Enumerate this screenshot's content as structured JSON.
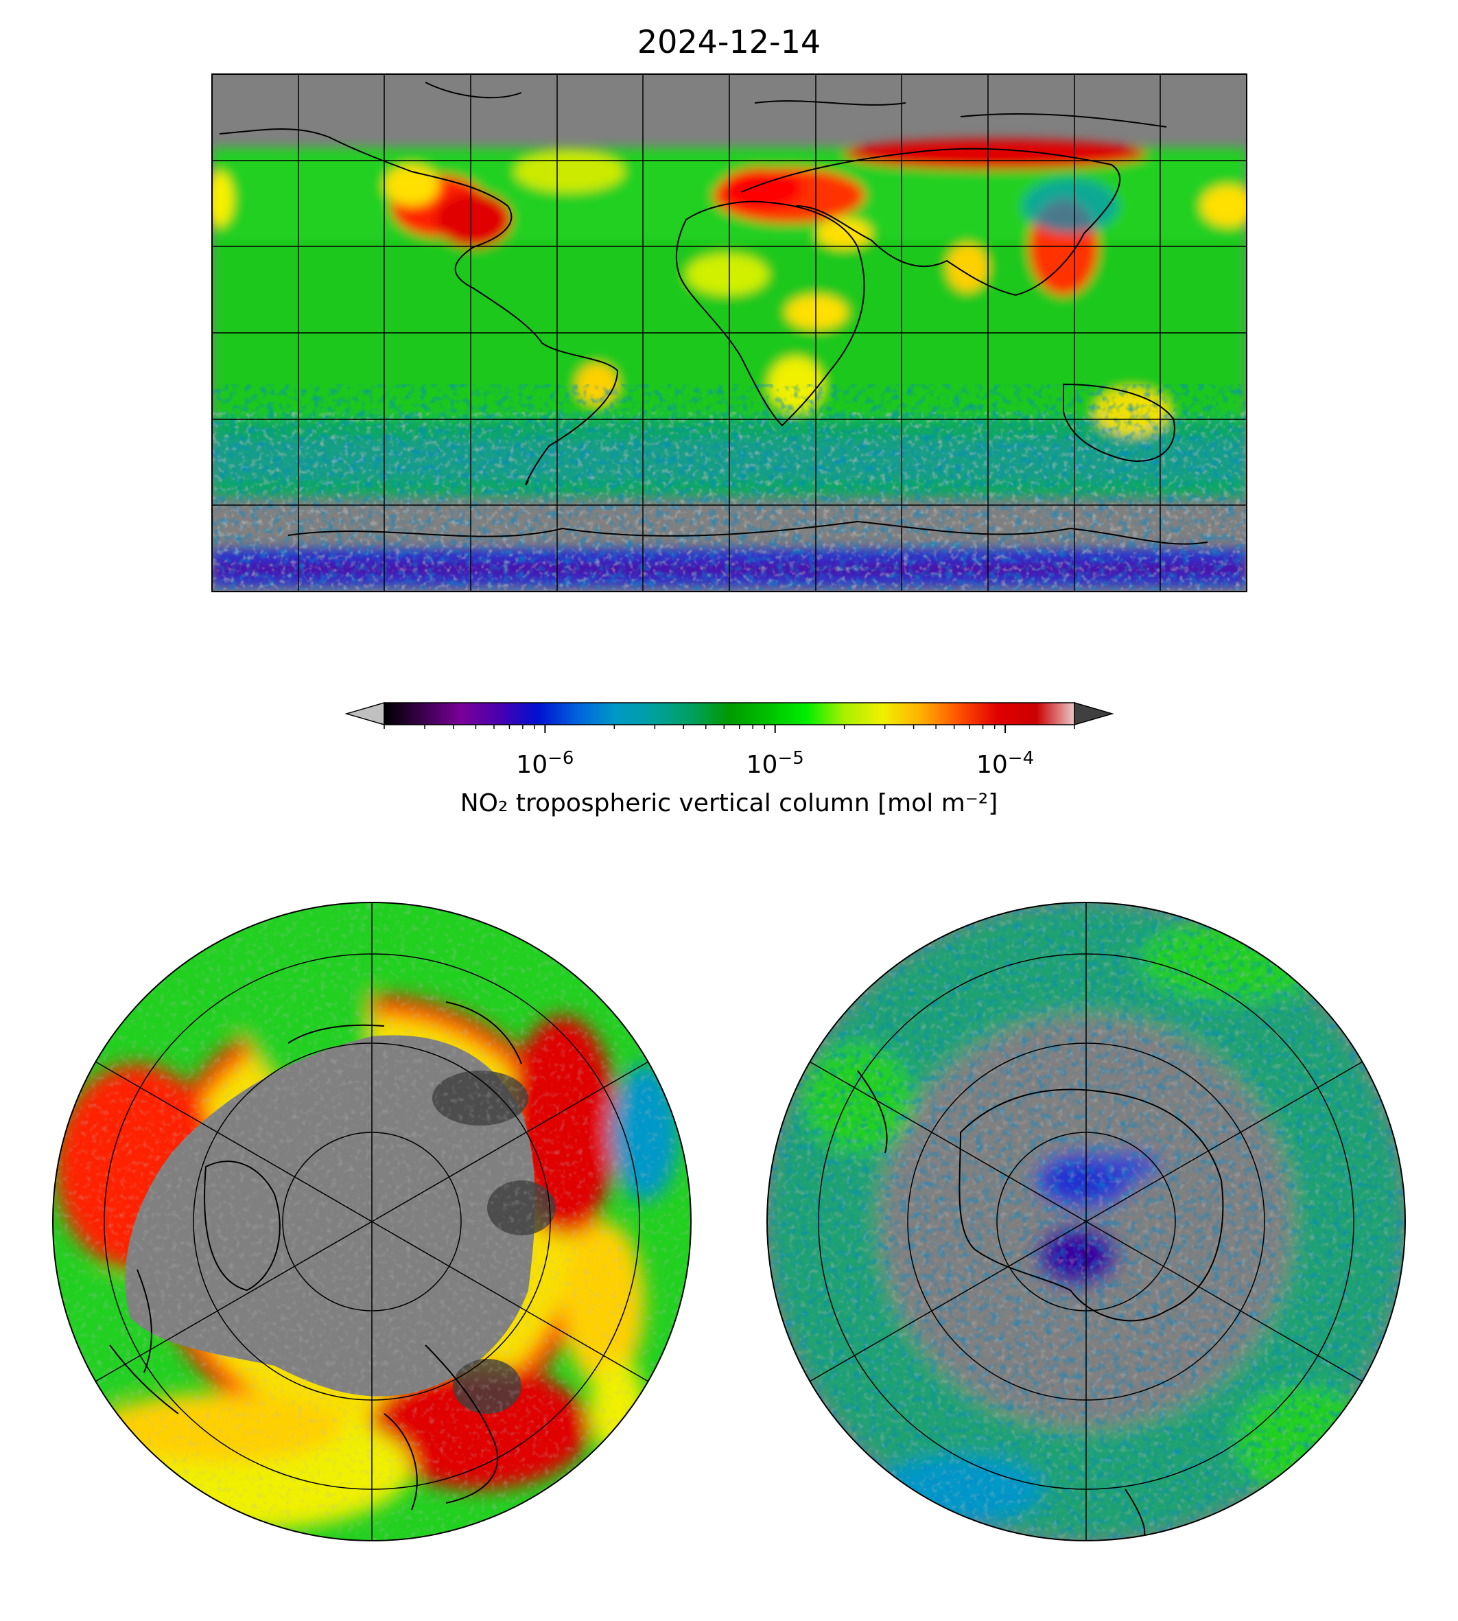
{
  "title": "2024-12-14",
  "colorbar": {
    "label": "NO₂ tropospheric vertical column [mol m⁻²]",
    "scale": "log",
    "range": [
      2e-07,
      0.0002
    ],
    "ticks": [
      {
        "value": 1e-06,
        "base": "10",
        "exp": "−6"
      },
      {
        "value": 1e-05,
        "base": "10",
        "exp": "−5"
      },
      {
        "value": 0.0001,
        "base": "10",
        "exp": "−4"
      }
    ],
    "extend": "both",
    "under_color": "#c0c0c0",
    "over_color": "#404040",
    "colormap": [
      "#000000",
      "#3a004a",
      "#7a0098",
      "#4a00b0",
      "#0010d0",
      "#0060dd",
      "#0098c8",
      "#00a0a0",
      "#00a060",
      "#009a00",
      "#00c000",
      "#00ee00",
      "#a8f000",
      "#f0f000",
      "#ffb000",
      "#ff5000",
      "#e00000",
      "#cc0000",
      "#e8c8c8"
    ]
  },
  "maps": {
    "global": {
      "projection": "plate-carree",
      "gridlines": true
    },
    "north_polar": {
      "projection": "north-polar-stereographic",
      "gridlines": true
    },
    "south_polar": {
      "projection": "south-polar-stereographic",
      "gridlines": true
    }
  },
  "colors": {
    "no_data": "#808080",
    "background": "#ffffff"
  }
}
